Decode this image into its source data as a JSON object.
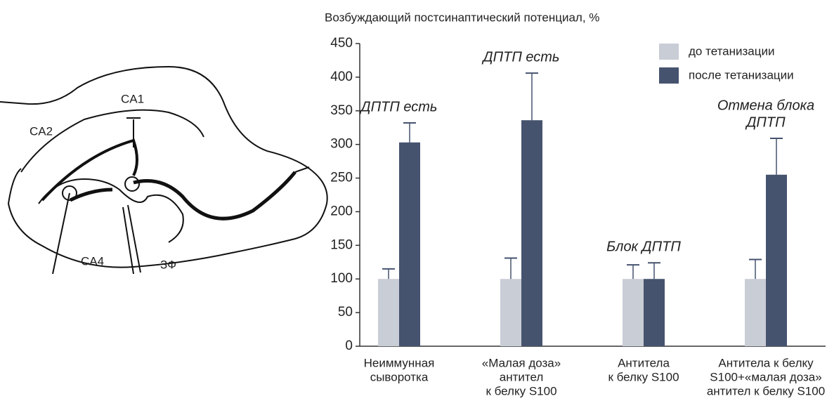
{
  "diagram": {
    "labels": [
      "CA1",
      "CA2",
      "CA4",
      "ЗФ"
    ]
  },
  "chart_data": {
    "type": "bar",
    "title": "Возбуждающий постсинаптический потенциал, %",
    "categories": [
      [
        "Неиммунная",
        "сыворотка"
      ],
      [
        "«Малая доза»",
        "антител",
        "к белку S100"
      ],
      [
        "Антитела",
        "к белку S100"
      ],
      [
        "Антитела к белку",
        "S100+«малая доза»",
        "антител к белку S100"
      ]
    ],
    "series": [
      {
        "name": "до тетанизации",
        "color": "#c9cdd6",
        "values": [
          100,
          100,
          100,
          100
        ],
        "errors": [
          15,
          31,
          21,
          29
        ]
      },
      {
        "name": "после тетанизации",
        "color": "#46536f",
        "values": [
          303,
          336,
          100,
          255
        ],
        "errors": [
          29,
          70,
          24,
          54
        ]
      }
    ],
    "annotations": [
      {
        "lines": [
          "ДПТП есть"
        ],
        "category": 0
      },
      {
        "lines": [
          "ДПТП есть"
        ],
        "category": 1
      },
      {
        "lines": [
          "Блок ДПТП"
        ],
        "category": 2
      },
      {
        "lines": [
          "Отмена блока",
          "ДПТП"
        ],
        "category": 3
      }
    ],
    "ylim": [
      0,
      450
    ],
    "yticks": [
      0,
      50,
      100,
      150,
      200,
      250,
      300,
      350,
      400,
      450
    ],
    "legend": "top-right"
  }
}
